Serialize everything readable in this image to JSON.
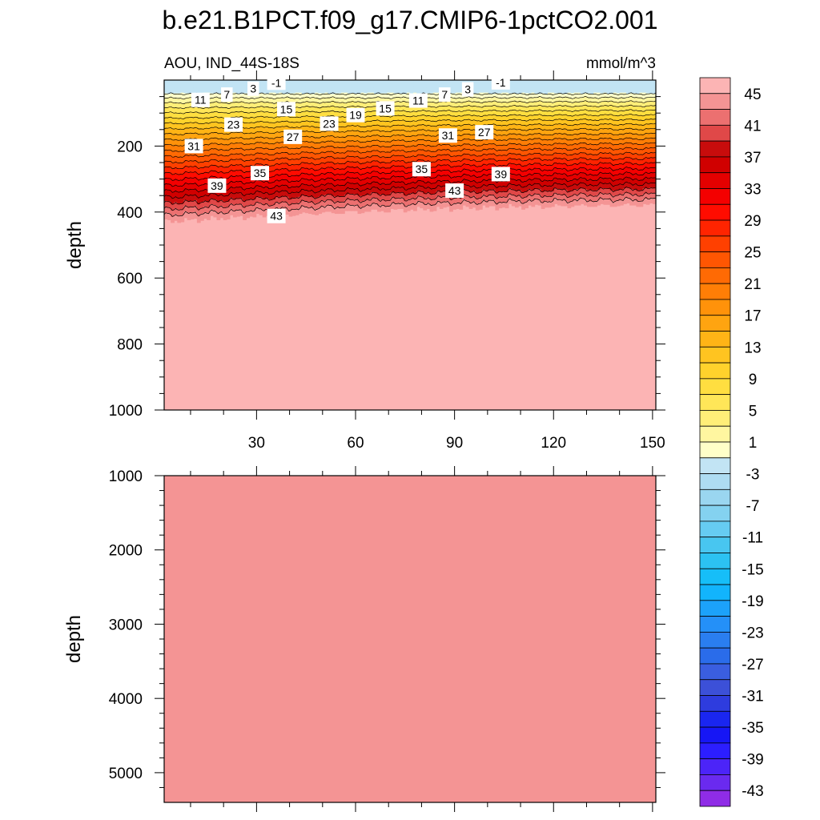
{
  "chart_data": [
    {
      "type": "contour",
      "panel": "upper",
      "title": "b.e21.B1PCT.f09_g17.CMIP6-1pctCO2.001",
      "left_subtitle": "AOU, IND_44S-18S",
      "right_subtitle": "mmol/m^3",
      "xlabel": "",
      "ylabel": "depth",
      "xlim": [
        2,
        151
      ],
      "ylim": [
        0,
        1000
      ],
      "y_reversed": true,
      "x_ticks": [
        30,
        60,
        90,
        120,
        150
      ],
      "x_tick_labels": [
        "30",
        "60",
        "90",
        "120",
        "150"
      ],
      "y_ticks": [
        200,
        400,
        600,
        800,
        1000
      ],
      "y_tick_labels": [
        "200",
        "400",
        "600",
        "800",
        "1000"
      ],
      "contour_labels": [
        {
          "text": "-1",
          "x": 36,
          "y": 8
        },
        {
          "text": "3",
          "x": 29,
          "y": 26
        },
        {
          "text": "7",
          "x": 21,
          "y": 44
        },
        {
          "text": "11",
          "x": 13,
          "y": 60
        },
        {
          "text": "15",
          "x": 39,
          "y": 88
        },
        {
          "text": "23",
          "x": 23,
          "y": 135
        },
        {
          "text": "19",
          "x": 60,
          "y": 106
        },
        {
          "text": "15",
          "x": 69,
          "y": 86
        },
        {
          "text": "11",
          "x": 79,
          "y": 62
        },
        {
          "text": "7",
          "x": 87,
          "y": 44
        },
        {
          "text": "3",
          "x": 94,
          "y": 28
        },
        {
          "text": "-1",
          "x": 104,
          "y": 7
        },
        {
          "text": "23",
          "x": 52,
          "y": 132
        },
        {
          "text": "27",
          "x": 41,
          "y": 172
        },
        {
          "text": "31",
          "x": 11,
          "y": 200
        },
        {
          "text": "31",
          "x": 88,
          "y": 168
        },
        {
          "text": "27",
          "x": 99,
          "y": 158
        },
        {
          "text": "35",
          "x": 31,
          "y": 282
        },
        {
          "text": "35",
          "x": 80,
          "y": 270
        },
        {
          "text": "39",
          "x": 18,
          "y": 320
        },
        {
          "text": "39",
          "x": 104,
          "y": 285
        },
        {
          "text": "43",
          "x": 36,
          "y": 412
        },
        {
          "text": "43",
          "x": 90,
          "y": 335
        }
      ]
    },
    {
      "type": "contour",
      "panel": "lower",
      "xlabel": "",
      "ylabel": "depth",
      "xlim": [
        2,
        151
      ],
      "ylim": [
        1000,
        5400
      ],
      "y_reversed": true,
      "y_ticks": [
        1000,
        2000,
        3000,
        4000,
        5000
      ],
      "y_tick_labels": [
        "1000",
        "2000",
        "3000",
        "4000",
        "5000"
      ],
      "fill_level": 45
    }
  ],
  "colorbar": {
    "levels": [
      -45,
      -43,
      -41,
      -39,
      -37,
      -35,
      -33,
      -31,
      -29,
      -27,
      -25,
      -23,
      -21,
      -19,
      -17,
      -15,
      -13,
      -11,
      -9,
      -7,
      -5,
      -3,
      -1,
      1,
      3,
      5,
      7,
      9,
      11,
      13,
      15,
      17,
      19,
      21,
      23,
      25,
      27,
      29,
      31,
      33,
      35,
      37,
      39,
      41,
      43,
      45
    ],
    "labels": [
      "45",
      "41",
      "37",
      "33",
      "29",
      "25",
      "21",
      "17",
      "13",
      "9",
      "5",
      "1",
      "-3",
      "-7",
      "-11",
      "-15",
      "-19",
      "-23",
      "-27",
      "-31",
      "-35",
      "-39",
      "-43"
    ],
    "colors": [
      "#8F2CE6",
      "#6A2AEF",
      "#4C24F8",
      "#2C1EFF",
      "#1616F5",
      "#1A26F0",
      "#2E3CDE",
      "#3C50D8",
      "#3A5EE0",
      "#2A6CEA",
      "#2A7EF0",
      "#2490F8",
      "#1CA2FA",
      "#12B4FC",
      "#16BEF8",
      "#2CC2F2",
      "#48C6F0",
      "#66CCF2",
      "#84D2F0",
      "#9AD6F0",
      "#AEDCF2",
      "#C2E4F4",
      "#FFFFC8",
      "#FFF6A0",
      "#FFEE78",
      "#FFE658",
      "#FFDE40",
      "#FFD22C",
      "#FFC420",
      "#FFB416",
      "#FFA410",
      "#FF920A",
      "#FF7E06",
      "#FF6A04",
      "#FF5602",
      "#FF4000",
      "#FF2400",
      "#FF0C00",
      "#F40000",
      "#E40000",
      "#D00000",
      "#C80C0C",
      "#E04848",
      "#EC7070",
      "#F49494",
      "#FCB4B4"
    ]
  }
}
